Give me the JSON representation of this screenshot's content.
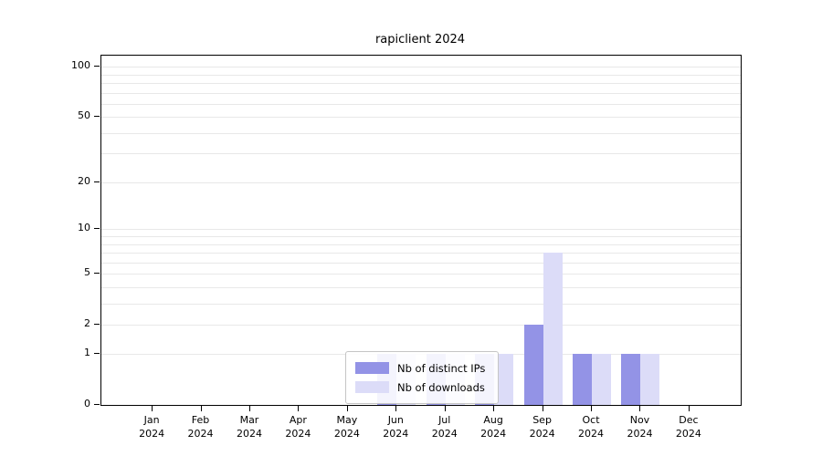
{
  "chart_data": {
    "type": "bar",
    "title": "rapiclient 2024",
    "categories": [
      "Jan",
      "Feb",
      "Mar",
      "Apr",
      "May",
      "Jun",
      "Jul",
      "Aug",
      "Sep",
      "Oct",
      "Nov",
      "Dec"
    ],
    "year": "2024",
    "series": [
      {
        "name": "Nb of distinct IPs",
        "color": "#9393e6",
        "values": [
          0,
          0,
          0,
          0,
          0,
          1,
          1,
          1,
          2,
          1,
          1,
          0
        ]
      },
      {
        "name": "Nb of downloads",
        "color": "#dcdcf8",
        "values": [
          0,
          0,
          0,
          0,
          0,
          1,
          1,
          1,
          7,
          1,
          1,
          0
        ]
      }
    ],
    "yscale": "log1p",
    "yticks": [
      0,
      1,
      2,
      5,
      10,
      20,
      50,
      100
    ],
    "gridlines": [
      1,
      2,
      3,
      4,
      5,
      6,
      7,
      8,
      9,
      10,
      20,
      30,
      40,
      50,
      60,
      70,
      80,
      90,
      100
    ],
    "ylim": [
      0,
      117
    ],
    "grid": true,
    "legend_position": "bottom-center"
  }
}
